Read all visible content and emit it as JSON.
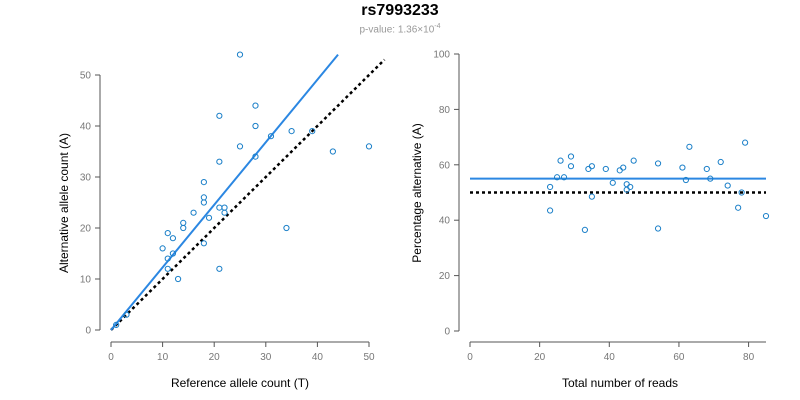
{
  "figure": {
    "title": "rs7993233",
    "pvalue_label": "p-value: 1.36×10",
    "pvalue_exponent": "-4"
  },
  "colors": {
    "points": "#1a7fc8",
    "fit_line": "#2b87e2",
    "reference_line": "#000000",
    "axis": "#555555",
    "tick_label": "#777777"
  },
  "chart_data": [
    {
      "type": "scatter",
      "title": "",
      "xlabel": "Reference allele count (T)",
      "ylabel": "Alternative allele count (A)",
      "xlim": [
        0,
        50
      ],
      "ylim": [
        0,
        50
      ],
      "xticks": [
        0,
        10,
        20,
        30,
        40,
        50
      ],
      "yticks": [
        0,
        10,
        20,
        30,
        40,
        50
      ],
      "grid": false,
      "points": [
        [
          1,
          1
        ],
        [
          3,
          3
        ],
        [
          10,
          16
        ],
        [
          11,
          19
        ],
        [
          11,
          14
        ],
        [
          11,
          12
        ],
        [
          12,
          18
        ],
        [
          12,
          15
        ],
        [
          13,
          10
        ],
        [
          14,
          21
        ],
        [
          14,
          20
        ],
        [
          16,
          23
        ],
        [
          18,
          29
        ],
        [
          18,
          26
        ],
        [
          18,
          25
        ],
        [
          18,
          17
        ],
        [
          19,
          22
        ],
        [
          21,
          24
        ],
        [
          21,
          42
        ],
        [
          21,
          33
        ],
        [
          21,
          12
        ],
        [
          22,
          24
        ],
        [
          22,
          23
        ],
        [
          25,
          54
        ],
        [
          25,
          36
        ],
        [
          28,
          44
        ],
        [
          28,
          40
        ],
        [
          28,
          34
        ],
        [
          31,
          38
        ],
        [
          34,
          20
        ],
        [
          35,
          39
        ],
        [
          39,
          39
        ],
        [
          43,
          35
        ],
        [
          50,
          36
        ]
      ],
      "fit_line": [
        [
          0,
          0
        ],
        [
          44,
          54
        ]
      ],
      "reference_line": [
        [
          0,
          0
        ],
        [
          53,
          53
        ]
      ]
    },
    {
      "type": "scatter",
      "title": "",
      "xlabel": "Total number of reads",
      "ylabel": "Percentage alternative (A)",
      "xlim": [
        0,
        85
      ],
      "ylim": [
        0,
        100
      ],
      "xticks": [
        0,
        20,
        40,
        60,
        80
      ],
      "yticks": [
        0,
        20,
        40,
        60,
        80,
        100
      ],
      "grid": false,
      "points": [
        [
          23,
          43.5
        ],
        [
          23,
          52
        ],
        [
          25,
          55.5
        ],
        [
          26,
          61.5
        ],
        [
          27,
          55.5
        ],
        [
          29,
          63
        ],
        [
          29,
          59.5
        ],
        [
          33,
          36.5
        ],
        [
          34,
          58.5
        ],
        [
          35,
          48.5
        ],
        [
          35,
          59.5
        ],
        [
          39,
          58.5
        ],
        [
          41,
          53.5
        ],
        [
          43,
          58
        ],
        [
          44,
          59
        ],
        [
          45,
          53
        ],
        [
          45,
          51
        ],
        [
          46,
          52
        ],
        [
          47,
          61.5
        ],
        [
          54,
          37
        ],
        [
          54,
          60.5
        ],
        [
          61,
          59
        ],
        [
          62,
          54.5
        ],
        [
          63,
          66.5
        ],
        [
          68,
          58.5
        ],
        [
          69,
          55
        ],
        [
          72,
          61
        ],
        [
          74,
          52.5
        ],
        [
          77,
          44.5
        ],
        [
          78,
          50
        ],
        [
          79,
          68
        ],
        [
          85,
          41.5
        ]
      ],
      "fit_line": [
        [
          0,
          55
        ],
        [
          85,
          55
        ]
      ],
      "reference_line": [
        [
          0,
          50
        ],
        [
          85,
          50
        ]
      ]
    }
  ]
}
